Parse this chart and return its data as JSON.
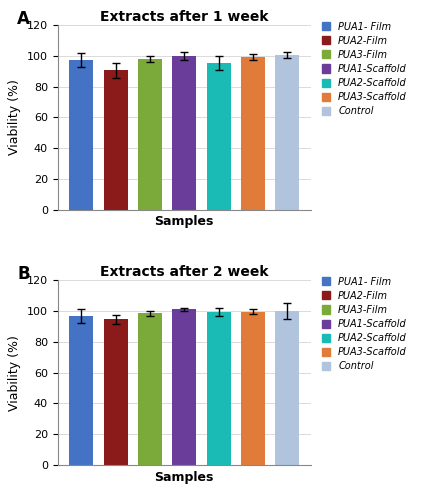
{
  "panel_A": {
    "title": "Extracts after 1 week",
    "values": [
      97.5,
      90.5,
      98.0,
      100.0,
      95.5,
      99.0,
      100.5
    ],
    "errors": [
      4.5,
      5.0,
      2.0,
      2.5,
      4.5,
      2.0,
      2.0
    ]
  },
  "panel_B": {
    "title": "Extracts after 2 week",
    "values": [
      96.5,
      94.5,
      98.5,
      101.0,
      99.5,
      99.5,
      100.0
    ],
    "errors": [
      4.5,
      3.0,
      1.5,
      1.0,
      2.5,
      1.5,
      5.0
    ]
  },
  "colors": [
    "#4472c4",
    "#8b1a1a",
    "#7caa3a",
    "#6a3d9a",
    "#1abbb4",
    "#e07b39",
    "#b0c4de"
  ],
  "legend_labels": [
    "PUA1- Film",
    "PUA2-Film",
    "PUA3-Film",
    "PUA1-Scaffold",
    "PUA2-Scaffold",
    "PUA3-Scaffold",
    "Control"
  ],
  "xlabel": "Samples",
  "ylabel": "Viability (%)",
  "ylim": [
    0,
    120
  ],
  "yticks": [
    0,
    20,
    40,
    60,
    80,
    100,
    120
  ],
  "label_A": "A",
  "label_B": "B",
  "legend_fontsize": 7.0,
  "axis_label_fontsize": 9,
  "title_fontsize": 10,
  "tick_fontsize": 8
}
